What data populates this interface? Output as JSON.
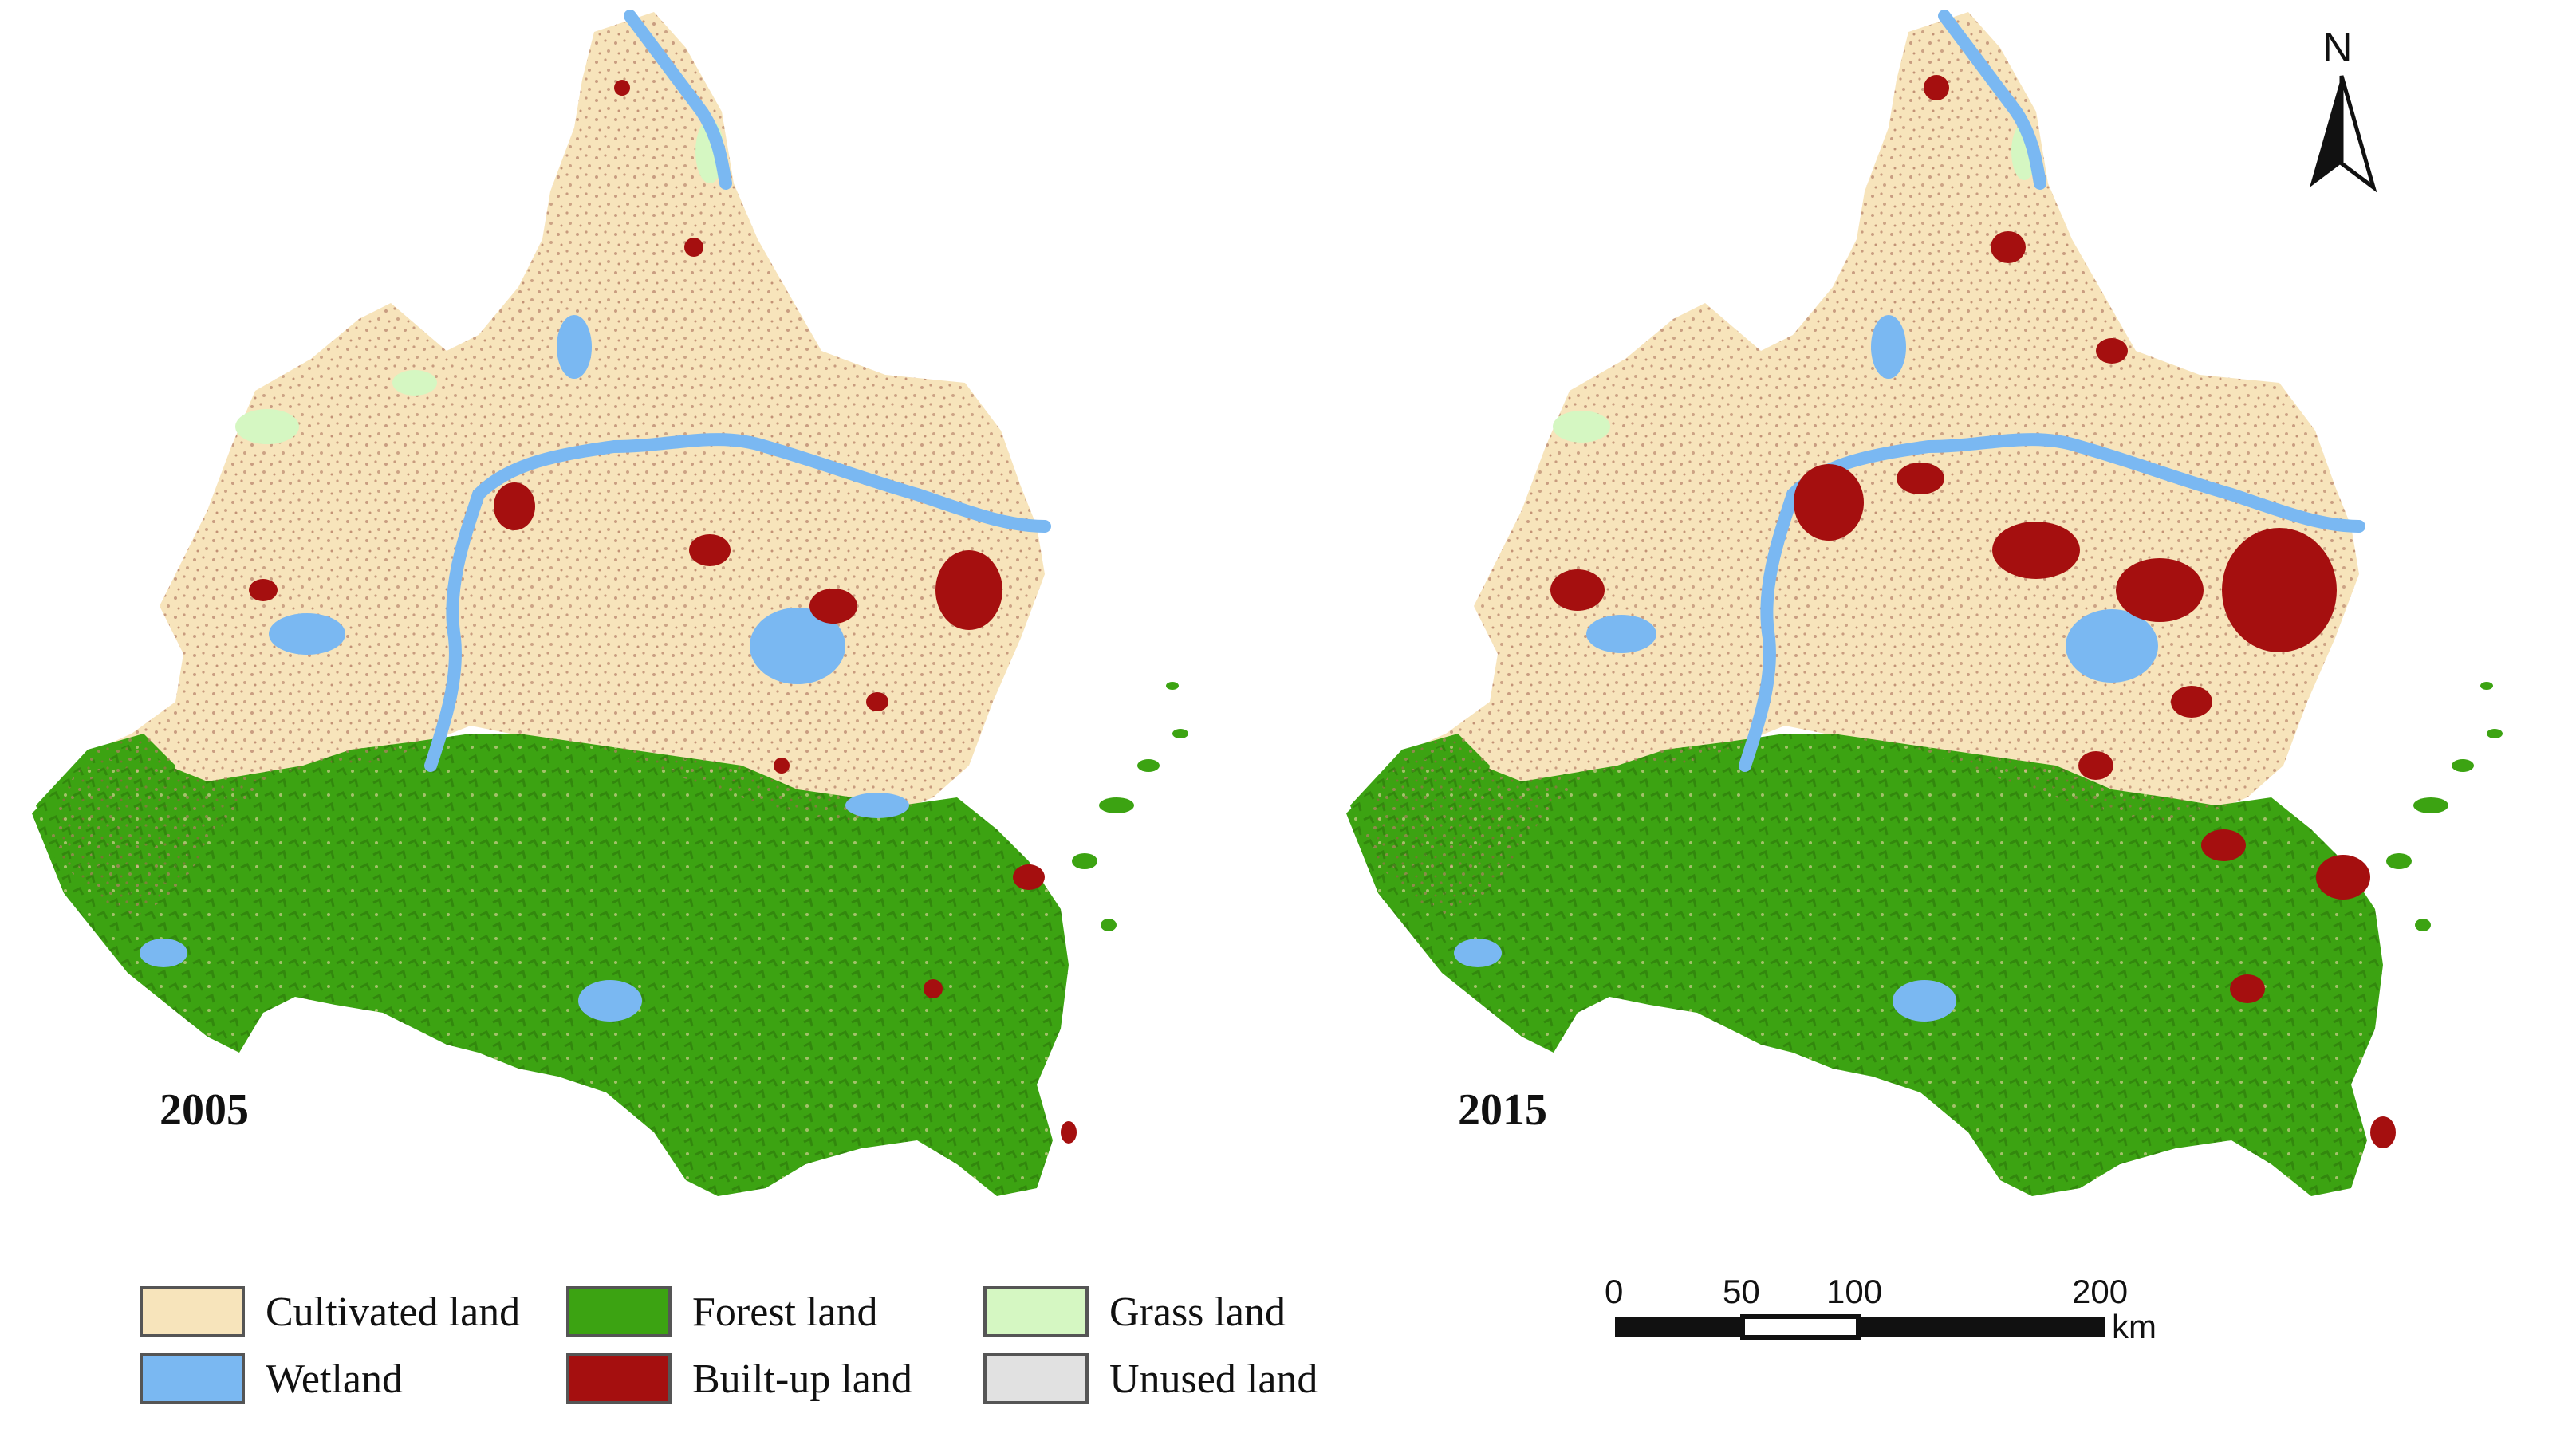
{
  "maps": [
    {
      "id": "map-2005",
      "year_label": "2005"
    },
    {
      "id": "map-2015",
      "year_label": "2015"
    }
  ],
  "legend": [
    {
      "key": "cultivated",
      "label": "Cultivated land",
      "color": "#f7e4bb"
    },
    {
      "key": "forest",
      "label": "Forest land",
      "color": "#3ca312"
    },
    {
      "key": "grass",
      "label": "Grass land",
      "color": "#d5f7c2"
    },
    {
      "key": "wetland",
      "label": "Wetland",
      "color": "#7ab8f2"
    },
    {
      "key": "builtup",
      "label": "Built-up land",
      "color": "#a50f0f"
    },
    {
      "key": "unused",
      "label": "Unused land",
      "color": "#e1e1e1"
    }
  ],
  "north_arrow": {
    "label": "N",
    "icon": "north-arrow-icon"
  },
  "scale_bar": {
    "ticks": [
      "0",
      "50",
      "100",
      "200"
    ],
    "unit": "km"
  }
}
